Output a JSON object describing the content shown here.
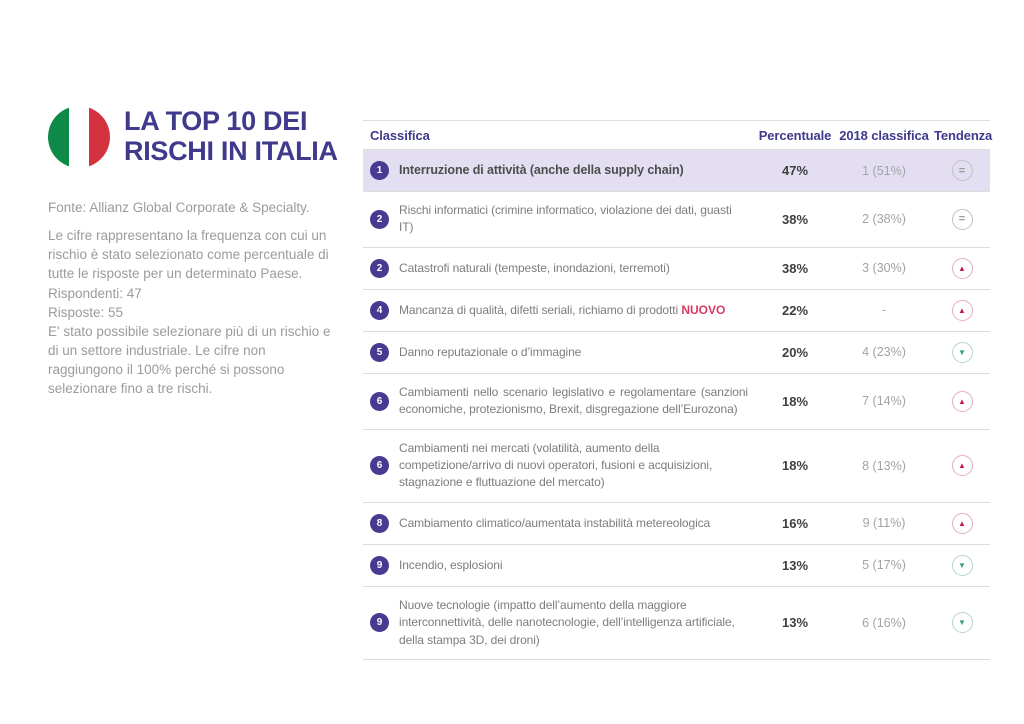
{
  "page": {
    "title_line1": "LA TOP 10 DEI",
    "title_line2": "RISCHI IN ITALIA",
    "flag_icon": "italy-flag-icon",
    "source": "Fonte: Allianz Global Corporate & Specialty.",
    "notes": [
      "Le cifre rappresentano la frequenza con cui un rischio è stato selezionato come percentuale di tutte le risposte per un determinato Paese.",
      "Rispondenti: 47",
      "Risposte: 55",
      "E' stato possibile selezionare più di un rischio e di un settore industriale. Le cifre non raggiungono il 100% perché si possono selezionare fino a tre rischi."
    ]
  },
  "table": {
    "headers": {
      "rank": "Classifica",
      "percent": "Percentuale",
      "prev": "2018 classifica",
      "trend": "Tendenza"
    },
    "trend_glyphs": {
      "equal": "=",
      "up": "▲",
      "down": "▼"
    },
    "rows": [
      {
        "rank": "1",
        "text": "Interruzione di attività (anche della supply chain)",
        "percent": "47%",
        "prev": "1 (51%)",
        "trend": "equal",
        "highlighted": true,
        "bold": true
      },
      {
        "rank": "2",
        "text": "Rischi informatici (crimine informatico, violazione dei dati, guasti IT)",
        "percent": "38%",
        "prev": "2 (38%)",
        "trend": "equal"
      },
      {
        "rank": "2",
        "text": "Catastrofi naturali (tempeste, inondazioni, terremoti)",
        "percent": "38%",
        "prev": "3 (30%)",
        "trend": "up"
      },
      {
        "rank": "4",
        "text": "Mancanza di qualità, difetti seriali, richiamo di prodotti",
        "badge": "NUOVO",
        "percent": "22%",
        "prev": "-",
        "trend": "up",
        "nowrap": true
      },
      {
        "rank": "5",
        "text": "Danno reputazionale o d’immagine",
        "percent": "20%",
        "prev": "4 (23%)",
        "trend": "down"
      },
      {
        "rank": "6",
        "text": "Cambiamenti nello scenario legislativo e regolamentare (sanzioni economiche, protezionismo, Brexit, disgregazione dell’Eurozona)",
        "percent": "18%",
        "prev": "7 (14%)",
        "trend": "up",
        "justify": true
      },
      {
        "rank": "6",
        "text": "Cambiamenti nei mercati (volatilità, aumento della competizione/arrivo di nuovi operatori, fusioni e acquisizioni, stagnazione e fluttuazione del mercato)",
        "percent": "18%",
        "prev": "8 (13%)",
        "trend": "up"
      },
      {
        "rank": "8",
        "text": "Cambiamento climatico/aumentata instabilità metereologica",
        "percent": "16%",
        "prev": "9 (11%)",
        "trend": "up"
      },
      {
        "rank": "9",
        "text": "Incendio, esplosioni",
        "percent": "13%",
        "prev": "5 (17%)",
        "trend": "down"
      },
      {
        "rank": "9",
        "text": "Nuove tecnologie (impatto dell’aumento della maggiore interconnettività, delle nanotecnologie, dell’intelligenza artificiale, della stampa 3D, dei droni)",
        "percent": "13%",
        "prev": "6 (16%)",
        "trend": "down"
      }
    ]
  },
  "colors": {
    "title": "#3f3a8c",
    "rank_badge_bg": "#473b91",
    "highlight_row_bg": "#e3def1",
    "nuovo_badge": "#d93a63",
    "trend_up": "#c21b54",
    "trend_down": "#35a17d",
    "trend_equal": "#9a9a9a",
    "note_text": "#9b9b9b",
    "flag_green": "#0d8a47",
    "flag_red": "#d2333f"
  }
}
